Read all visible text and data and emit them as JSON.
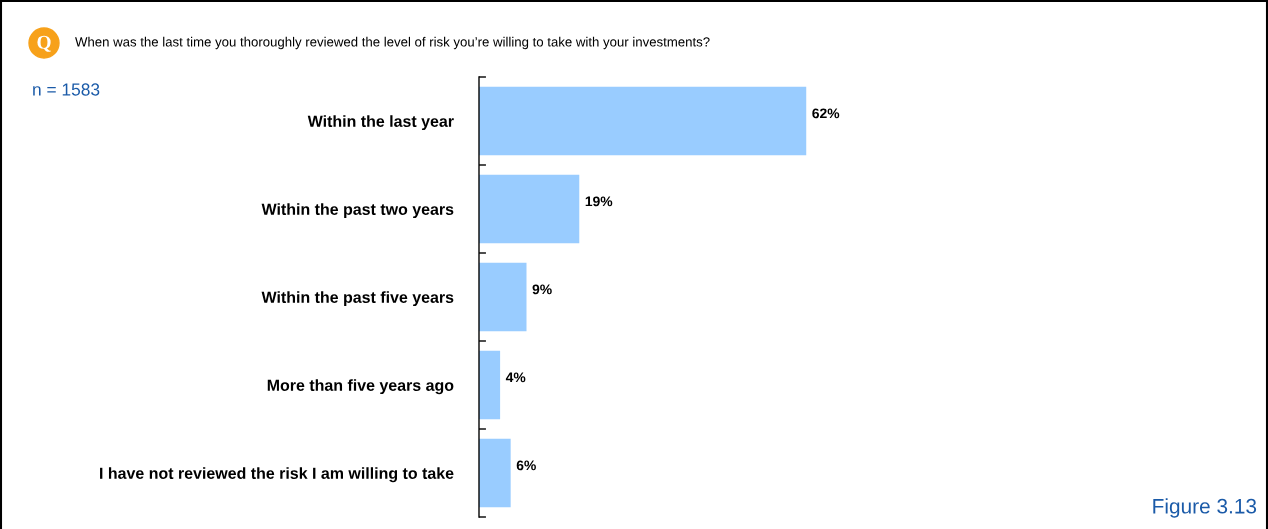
{
  "chart_data": {
    "type": "bar",
    "orientation": "horizontal",
    "title": "When was the last time you thoroughly reviewed the level of risk you’re willing to take with your investments?",
    "categories": [
      "Within the last year",
      "Within the past two years",
      "Within the past five years",
      "More than five years ago",
      "I have not reviewed the risk I am willing to take"
    ],
    "values": [
      62,
      19,
      9,
      4,
      6
    ],
    "value_labels": [
      "62%",
      "19%",
      "9%",
      "4%",
      "6%"
    ],
    "color": "#99ccff",
    "annotations": [
      "Q",
      "n = 1583",
      "Figure 3.13"
    ],
    "grid": false,
    "legend": false,
    "tick_labels": "y"
  }
}
